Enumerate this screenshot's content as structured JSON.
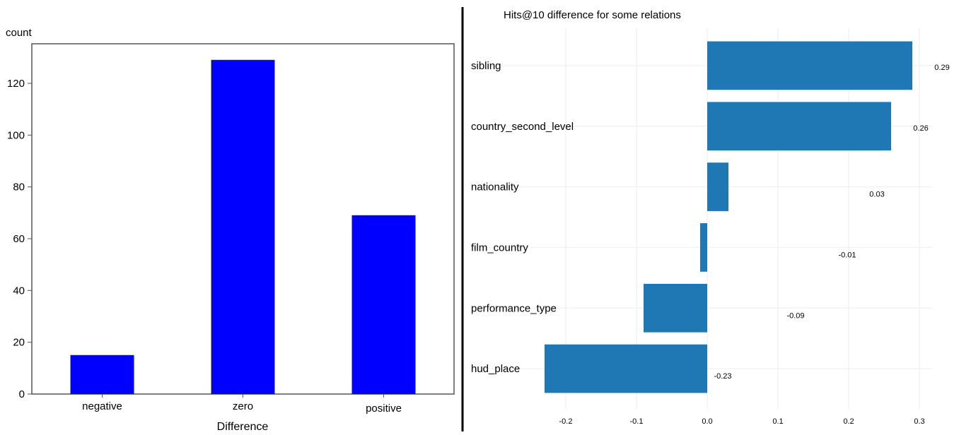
{
  "chart_data": [
    {
      "type": "bar",
      "ylabel": "count",
      "xlabel": "Difference",
      "categories": [
        "negative",
        "zero",
        "positive"
      ],
      "values": [
        15,
        129,
        69
      ],
      "ylim": [
        0,
        135
      ],
      "yticks": [
        0,
        20,
        40,
        60,
        80,
        100,
        120
      ],
      "color": "#0000ff",
      "grid": false
    },
    {
      "type": "bar",
      "orientation": "horizontal",
      "title": "Hits@10 difference for some relations",
      "categories": [
        "sibling",
        "country_second_level",
        "nationality",
        "film_country",
        "performance_type",
        "hud_place"
      ],
      "values": [
        0.29,
        0.26,
        0.03,
        -0.01,
        -0.09,
        -0.23
      ],
      "value_labels": [
        "0.29",
        "0.26",
        "0.03",
        "-0.01",
        "-0.09",
        "-0.23"
      ],
      "xlim": [
        -0.2,
        0.3
      ],
      "xticks": [
        -0.2,
        -0.1,
        0.0,
        0.1,
        0.2,
        0.3
      ],
      "xtick_labels": [
        "-0.2",
        "-0.1",
        "0.0",
        "0.1",
        "0.2",
        "0.3"
      ],
      "color": "#1f77b4",
      "grid": true
    }
  ]
}
